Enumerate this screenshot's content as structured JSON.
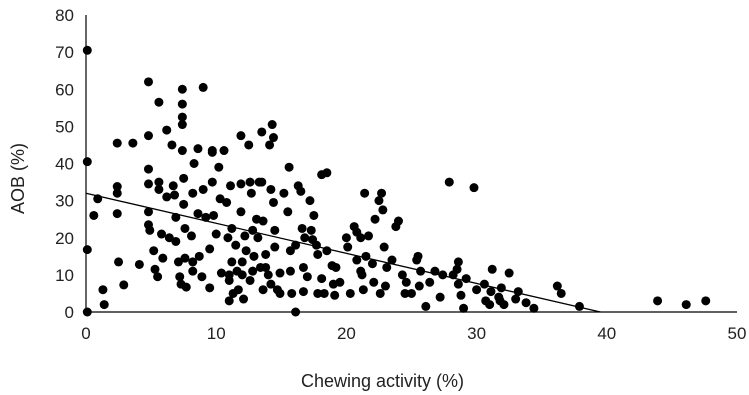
{
  "chart_data": {
    "type": "scatter",
    "xlabel": "Chewing activity (%)",
    "ylabel": "AOB (%)",
    "xlim": [
      0,
      50
    ],
    "ylim": [
      0,
      80
    ],
    "xticks": [
      "0",
      "10",
      "20",
      "30",
      "40",
      "50"
    ],
    "yticks": [
      "0",
      "10",
      "20",
      "30",
      "40",
      "50",
      "60",
      "70",
      "80"
    ],
    "grid": false,
    "legend": "none",
    "colors": {
      "points": "#000000",
      "trendline": "#000000",
      "axis": "#000000"
    },
    "trendline": {
      "intercept": 32,
      "slope": -0.81
    },
    "series": [
      {
        "points": [
          [
            0.1,
            70.5
          ],
          [
            0.1,
            40.5
          ],
          [
            0.1,
            16.8
          ],
          [
            0.1,
            0
          ],
          [
            0.6,
            26
          ],
          [
            0.9,
            30.5
          ],
          [
            1.3,
            6
          ],
          [
            1.4,
            2
          ],
          [
            2.4,
            45.5
          ],
          [
            2.4,
            33.8
          ],
          [
            2.4,
            32
          ],
          [
            2.4,
            26.5
          ],
          [
            2.5,
            13.5
          ],
          [
            2.9,
            7.3
          ],
          [
            3.6,
            45.5
          ],
          [
            4.1,
            12.8
          ],
          [
            4.8,
            62
          ],
          [
            4.8,
            47.5
          ],
          [
            4.8,
            38.5
          ],
          [
            4.8,
            34.5
          ],
          [
            4.8,
            27
          ],
          [
            4.8,
            23.5
          ],
          [
            4.9,
            22
          ],
          [
            5.2,
            16.5
          ],
          [
            5.3,
            11.5
          ],
          [
            5.5,
            9.5
          ],
          [
            5.6,
            56.5
          ],
          [
            5.6,
            35
          ],
          [
            5.6,
            33
          ],
          [
            5.8,
            21
          ],
          [
            5.9,
            14.5
          ],
          [
            6.2,
            49
          ],
          [
            6.2,
            31
          ],
          [
            6.4,
            20
          ],
          [
            6.6,
            45
          ],
          [
            6.7,
            34
          ],
          [
            6.8,
            31.5
          ],
          [
            6.9,
            25.5
          ],
          [
            6.9,
            19
          ],
          [
            7.1,
            13.5
          ],
          [
            7.2,
            9.5
          ],
          [
            7.3,
            7.5
          ],
          [
            7.4,
            60
          ],
          [
            7.4,
            56
          ],
          [
            7.4,
            52.5
          ],
          [
            7.4,
            50.5
          ],
          [
            7.4,
            43.5
          ],
          [
            7.5,
            36
          ],
          [
            7.5,
            29
          ],
          [
            7.6,
            22.5
          ],
          [
            7.6,
            14.5
          ],
          [
            7.7,
            6.7
          ],
          [
            8.1,
            20.5
          ],
          [
            8.2,
            13.5
          ],
          [
            8.2,
            11
          ],
          [
            8.2,
            32
          ],
          [
            8.3,
            40
          ],
          [
            8.6,
            44
          ],
          [
            8.6,
            26.5
          ],
          [
            8.7,
            15
          ],
          [
            8.9,
            9.5
          ],
          [
            9.0,
            60.5
          ],
          [
            9.0,
            33
          ],
          [
            9.2,
            25.5
          ],
          [
            9.5,
            17
          ],
          [
            9.5,
            6.5
          ],
          [
            9.7,
            43
          ],
          [
            9.7,
            43.5
          ],
          [
            9.7,
            35
          ],
          [
            9.8,
            26
          ],
          [
            10.0,
            21
          ],
          [
            10.2,
            39
          ],
          [
            10.3,
            30.5
          ],
          [
            10.4,
            10.5
          ],
          [
            10.6,
            43.5
          ],
          [
            10.8,
            29.5
          ],
          [
            10.9,
            20
          ],
          [
            11.0,
            10
          ],
          [
            11.0,
            8.5
          ],
          [
            11.0,
            3
          ],
          [
            11.1,
            34
          ],
          [
            11.2,
            22.5
          ],
          [
            11.2,
            13.5
          ],
          [
            11.3,
            5
          ],
          [
            11.5,
            18
          ],
          [
            11.6,
            11
          ],
          [
            11.7,
            6
          ],
          [
            11.9,
            47.5
          ],
          [
            11.9,
            34.5
          ],
          [
            11.9,
            27
          ],
          [
            12.0,
            13.5
          ],
          [
            12.0,
            10
          ],
          [
            12.1,
            3.5
          ],
          [
            12.2,
            20.5
          ],
          [
            12.3,
            16.5
          ],
          [
            12.5,
            45
          ],
          [
            12.6,
            35
          ],
          [
            12.6,
            8.5
          ],
          [
            12.7,
            32
          ],
          [
            12.8,
            22
          ],
          [
            12.8,
            11
          ],
          [
            12.9,
            15
          ],
          [
            13.1,
            25
          ],
          [
            13.2,
            20
          ],
          [
            13.3,
            35
          ],
          [
            13.4,
            12
          ],
          [
            13.5,
            48.5
          ],
          [
            13.5,
            35
          ],
          [
            13.6,
            24.5
          ],
          [
            13.6,
            6
          ],
          [
            13.8,
            15.5
          ],
          [
            13.8,
            12
          ],
          [
            14.0,
            10
          ],
          [
            14.1,
            45
          ],
          [
            14.2,
            33
          ],
          [
            14.2,
            7.5
          ],
          [
            14.3,
            50.5
          ],
          [
            14.4,
            47
          ],
          [
            14.4,
            29.5
          ],
          [
            14.5,
            22
          ],
          [
            14.5,
            17.5
          ],
          [
            14.7,
            6
          ],
          [
            14.9,
            10.5
          ],
          [
            14.9,
            5
          ],
          [
            15.2,
            32
          ],
          [
            15.5,
            27
          ],
          [
            15.6,
            39
          ],
          [
            15.7,
            16.5
          ],
          [
            15.7,
            11
          ],
          [
            15.8,
            5
          ],
          [
            16.1,
            18
          ],
          [
            16.1,
            0
          ],
          [
            16.3,
            34
          ],
          [
            16.5,
            32.5
          ],
          [
            16.6,
            22.5
          ],
          [
            16.7,
            12
          ],
          [
            16.7,
            5.5
          ],
          [
            16.8,
            20
          ],
          [
            17.0,
            9.5
          ],
          [
            17.2,
            30
          ],
          [
            17.3,
            22
          ],
          [
            17.4,
            19.5
          ],
          [
            17.5,
            26
          ],
          [
            17.7,
            18
          ],
          [
            17.8,
            15.5
          ],
          [
            17.8,
            5
          ],
          [
            18.1,
            37
          ],
          [
            18.1,
            9
          ],
          [
            18.3,
            5
          ],
          [
            18.5,
            37.5
          ],
          [
            18.5,
            16.5
          ],
          [
            18.9,
            12.5
          ],
          [
            19.0,
            7.5
          ],
          [
            19.1,
            4.5
          ],
          [
            19.2,
            12
          ],
          [
            19.5,
            8
          ],
          [
            20.0,
            20
          ],
          [
            20.1,
            17.5
          ],
          [
            20.3,
            5
          ],
          [
            20.6,
            23
          ],
          [
            20.8,
            21.5
          ],
          [
            20.8,
            14
          ],
          [
            21.1,
            20
          ],
          [
            21.1,
            11
          ],
          [
            21.2,
            10
          ],
          [
            21.3,
            6
          ],
          [
            21.4,
            32
          ],
          [
            21.5,
            15
          ],
          [
            21.7,
            20.5
          ],
          [
            22.0,
            13
          ],
          [
            22.1,
            8
          ],
          [
            22.2,
            25
          ],
          [
            22.5,
            30
          ],
          [
            22.6,
            5
          ],
          [
            22.7,
            32
          ],
          [
            22.8,
            27.5
          ],
          [
            22.9,
            17.5
          ],
          [
            23.0,
            7
          ],
          [
            23.1,
            12
          ],
          [
            23.5,
            14
          ],
          [
            23.8,
            23
          ],
          [
            24.0,
            24.5
          ],
          [
            24.3,
            10
          ],
          [
            24.5,
            5
          ],
          [
            24.6,
            8
          ],
          [
            25.0,
            5
          ],
          [
            25.4,
            14
          ],
          [
            25.5,
            15
          ],
          [
            25.6,
            7
          ],
          [
            25.7,
            11
          ],
          [
            26.1,
            1.5
          ],
          [
            26.4,
            8
          ],
          [
            26.8,
            11
          ],
          [
            27.2,
            4
          ],
          [
            27.4,
            10
          ],
          [
            27.9,
            35
          ],
          [
            28.2,
            10
          ],
          [
            28.5,
            11.5
          ],
          [
            28.6,
            7.5
          ],
          [
            28.6,
            13.5
          ],
          [
            28.8,
            4.5
          ],
          [
            29.0,
            1
          ],
          [
            29.2,
            9
          ],
          [
            29.8,
            33.5
          ],
          [
            30.0,
            6
          ],
          [
            30.6,
            7.5
          ],
          [
            30.7,
            3
          ],
          [
            31.0,
            2
          ],
          [
            31.1,
            5.5
          ],
          [
            31.2,
            11.5
          ],
          [
            31.7,
            4
          ],
          [
            31.8,
            3
          ],
          [
            31.9,
            6.5
          ],
          [
            32.1,
            2
          ],
          [
            32.5,
            10.5
          ],
          [
            33.0,
            3.5
          ],
          [
            33.2,
            5.5
          ],
          [
            33.8,
            2.5
          ],
          [
            34.4,
            1
          ],
          [
            36.2,
            7
          ],
          [
            36.5,
            5
          ],
          [
            37.9,
            1.5
          ],
          [
            43.9,
            3
          ],
          [
            46.1,
            2
          ],
          [
            47.6,
            3
          ]
        ]
      }
    ]
  }
}
